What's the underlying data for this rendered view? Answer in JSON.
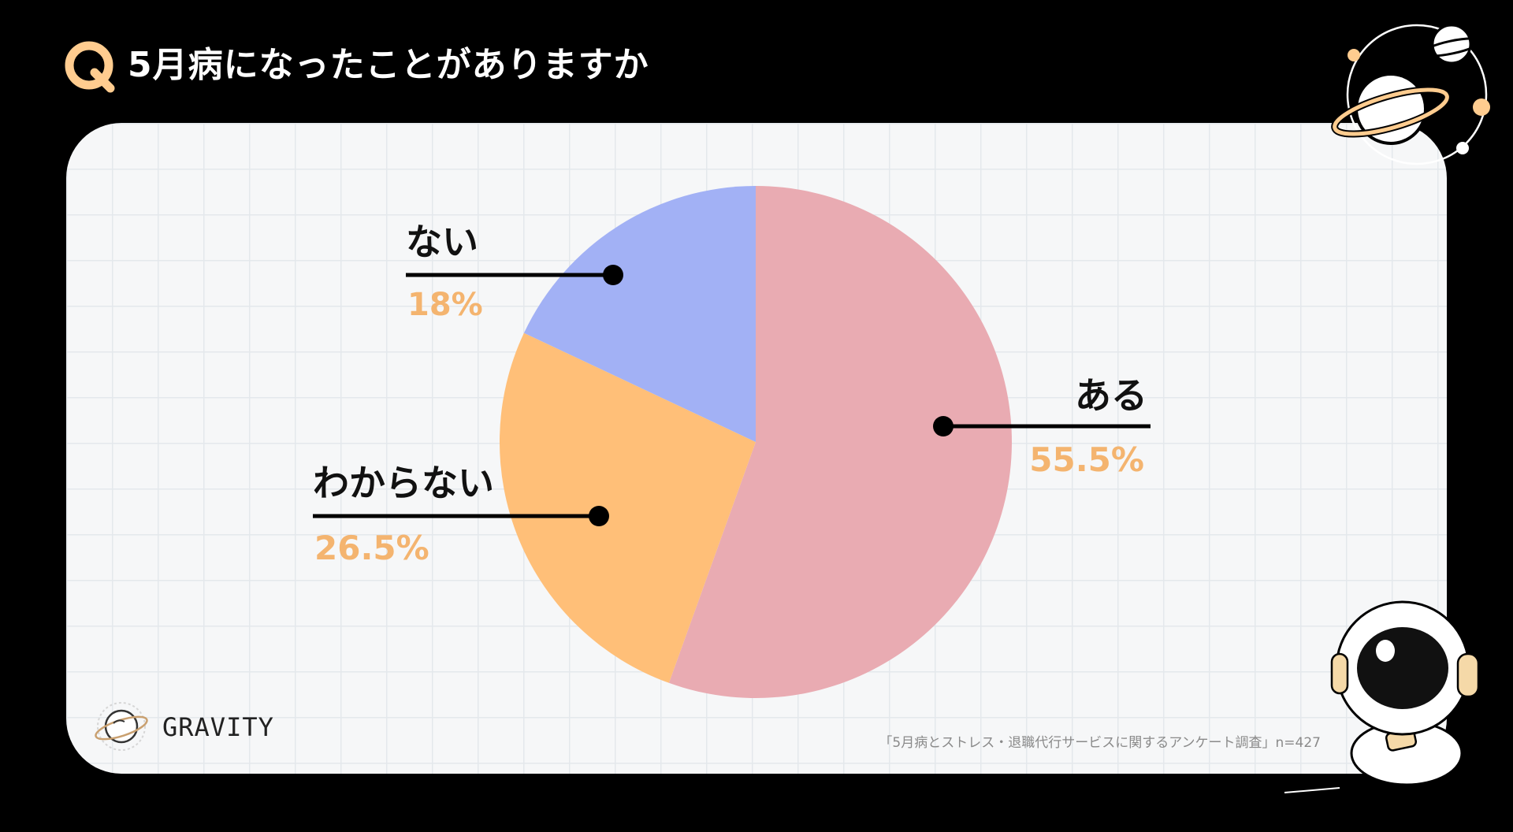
{
  "header": {
    "q_letter": "Q",
    "question": "5月病になったことがありますか"
  },
  "chart_data": {
    "type": "pie",
    "title": "5月病になったことがありますか",
    "start_angle_deg": 0,
    "direction": "clockwise",
    "slices": [
      {
        "label": "ある",
        "value": 55.5,
        "value_label": "55.5%",
        "color": "#e9abb2"
      },
      {
        "label": "わからない",
        "value": 26.5,
        "value_label": "26.5%",
        "color": "#ffbf78"
      },
      {
        "label": "ない",
        "value": 18,
        "value_label": "18%",
        "color": "#a2b1f5"
      }
    ]
  },
  "footer": {
    "source": "「5月病とストレス・退職代行サービスに関するアンケート調査」n=427",
    "brand": "GRAVITY"
  },
  "colors": {
    "background": "#000000",
    "accent": "#ffcc8f",
    "value_text": "#f4b46f",
    "card": "#f6f7f8"
  }
}
